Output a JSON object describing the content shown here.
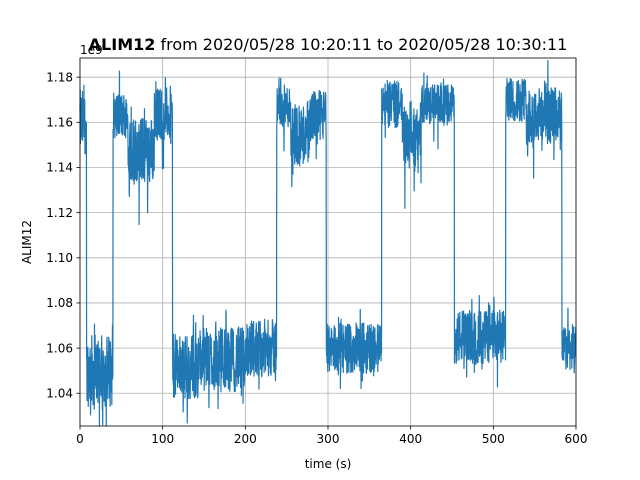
{
  "chart_data": {
    "type": "line",
    "title_bold": "ALIM12",
    "title_rest": " from 2020/05/28 10:20:11 to 2020/05/28 10:30:11",
    "xlabel": "time (s)",
    "ylabel": "ALIM12",
    "offset_text": "1e9",
    "xlim": [
      0,
      600
    ],
    "ylim": [
      1.0255,
      1.1885
    ],
    "x_ticks": [
      0,
      100,
      200,
      300,
      400,
      500,
      600
    ],
    "y_ticks": [
      1.04,
      1.06,
      1.08,
      1.1,
      1.12,
      1.14,
      1.16,
      1.18
    ],
    "grid": true,
    "color": "#1f77b4",
    "segments": [
      {
        "x": [
          0,
          8
        ],
        "mean": 1.16,
        "noise": 0.018
      },
      {
        "x": [
          8,
          40
        ],
        "mean": 1.05,
        "noise": 0.02
      },
      {
        "x": [
          40,
          58
        ],
        "mean": 1.163,
        "noise": 0.013
      },
      {
        "x": [
          58,
          90
        ],
        "mean": 1.148,
        "noise": 0.018
      },
      {
        "x": [
          90,
          112
        ],
        "mean": 1.164,
        "noise": 0.015
      },
      {
        "x": [
          112,
          145
        ],
        "mean": 1.052,
        "noise": 0.018
      },
      {
        "x": [
          145,
          200
        ],
        "mean": 1.055,
        "noise": 0.018
      },
      {
        "x": [
          200,
          238
        ],
        "mean": 1.06,
        "noise": 0.016
      },
      {
        "x": [
          238,
          255
        ],
        "mean": 1.167,
        "noise": 0.012
      },
      {
        "x": [
          255,
          278
        ],
        "mean": 1.155,
        "noise": 0.018
      },
      {
        "x": [
          278,
          298
        ],
        "mean": 1.163,
        "noise": 0.014
      },
      {
        "x": [
          298,
          365
        ],
        "mean": 1.06,
        "noise": 0.014
      },
      {
        "x": [
          365,
          390
        ],
        "mean": 1.168,
        "noise": 0.013
      },
      {
        "x": [
          390,
          413
        ],
        "mean": 1.155,
        "noise": 0.018
      },
      {
        "x": [
          413,
          453
        ],
        "mean": 1.168,
        "noise": 0.011
      },
      {
        "x": [
          453,
          515
        ],
        "mean": 1.065,
        "noise": 0.015
      },
      {
        "x": [
          515,
          540
        ],
        "mean": 1.17,
        "noise": 0.012
      },
      {
        "x": [
          540,
          583
        ],
        "mean": 1.163,
        "noise": 0.016
      },
      {
        "x": [
          583,
          600
        ],
        "mean": 1.06,
        "noise": 0.012
      }
    ]
  }
}
